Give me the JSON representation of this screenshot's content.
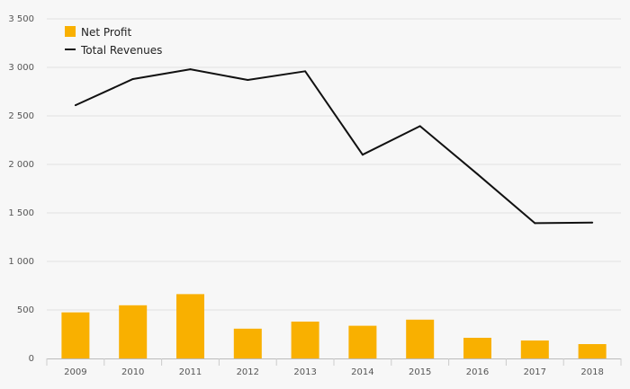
{
  "chart_data": {
    "type": "bar",
    "title": "",
    "xlabel": "",
    "ylabel": "",
    "categories": [
      "2009",
      "2010",
      "2011",
      "2012",
      "2013",
      "2014",
      "2015",
      "2016",
      "2017",
      "2018"
    ],
    "series": [
      {
        "name": "Net Profit",
        "type": "bar",
        "color": "#f9b000",
        "values": [
          475,
          548,
          663,
          307,
          380,
          337,
          400,
          213,
          185,
          148
        ]
      },
      {
        "name": "Total Revenues",
        "type": "line",
        "color": "#111111",
        "values": [
          2610,
          2880,
          2980,
          2870,
          2960,
          2100,
          2395,
          1900,
          1395,
          1400
        ]
      }
    ],
    "ylim": [
      0,
      3500
    ],
    "yticks": [
      0,
      500,
      1000,
      1500,
      2000,
      2500,
      3000,
      3500
    ],
    "ytick_labels": [
      "0",
      "500",
      "1 000",
      "1 500",
      "2 000",
      "2 500",
      "3 000",
      "3 500"
    ],
    "grid": true,
    "legend_position": "top-left"
  }
}
